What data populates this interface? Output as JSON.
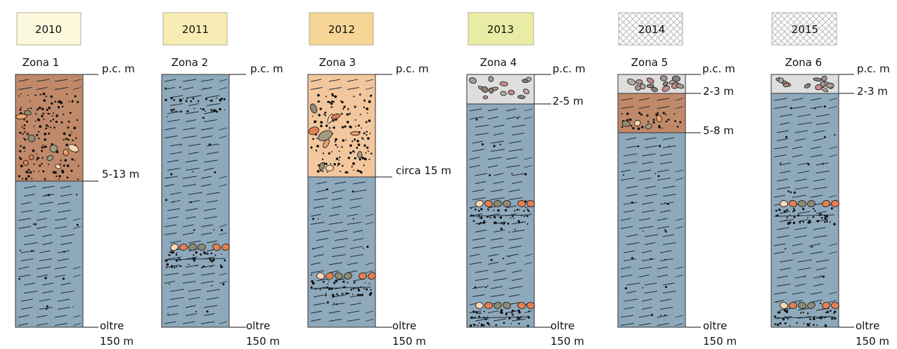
{
  "colors": {
    "clay_blue": "#8fa9bc",
    "gravel_brown": "#c0896a",
    "sand_orange": "#f3c79e",
    "rubble_grey": "#dedede",
    "year_2010": "#fcf8dc",
    "year_2011": "#f7ecb3",
    "year_2012": "#f6d596",
    "year_2013": "#e9eca5",
    "hatch": "#b8b8b8"
  },
  "columns": [
    {
      "year": "2010",
      "zone": "Zona 1",
      "top_label": "p.c. m",
      "bottom_label_line1": "oltre",
      "bottom_label_line2": "150 m",
      "upper_layer": "gravel",
      "upper_label": "5-13 m",
      "lenses": 0
    },
    {
      "year": "2011",
      "zone": "Zona 2",
      "top_label": "p.c. m",
      "bottom_label_line1": "oltre",
      "bottom_label_line2": "150 m",
      "upper_layer": "none",
      "lenses": 2
    },
    {
      "year": "2012",
      "zone": "Zona 3",
      "top_label": "p.c. m",
      "bottom_label_line1": "oltre",
      "bottom_label_line2": "150 m",
      "upper_layer": "sand",
      "upper_label": "circa 15 m",
      "lenses": 1
    },
    {
      "year": "2013",
      "zone": "Zona 4",
      "top_label": "p.c. m",
      "bottom_label_line1": "oltre",
      "bottom_label_line2": "150 m",
      "upper_layer": "rubble",
      "upper_label": "2-5 m",
      "lenses": 2
    },
    {
      "year": "2014",
      "zone": "Zona 5",
      "top_label": "p.c. m",
      "bottom_label_line1": "oltre",
      "bottom_label_line2": "150 m",
      "upper_layer": "rubble+gravel",
      "upper_label": "2-3 m",
      "second_label": "5-8 m",
      "lenses": 0
    },
    {
      "year": "2015",
      "zone": "Zona 6",
      "top_label": "p.c. m",
      "bottom_label_line1": "oltre",
      "bottom_label_line2": "150 m",
      "upper_layer": "rubble",
      "upper_label": "2-3 m",
      "lenses": 2
    }
  ]
}
